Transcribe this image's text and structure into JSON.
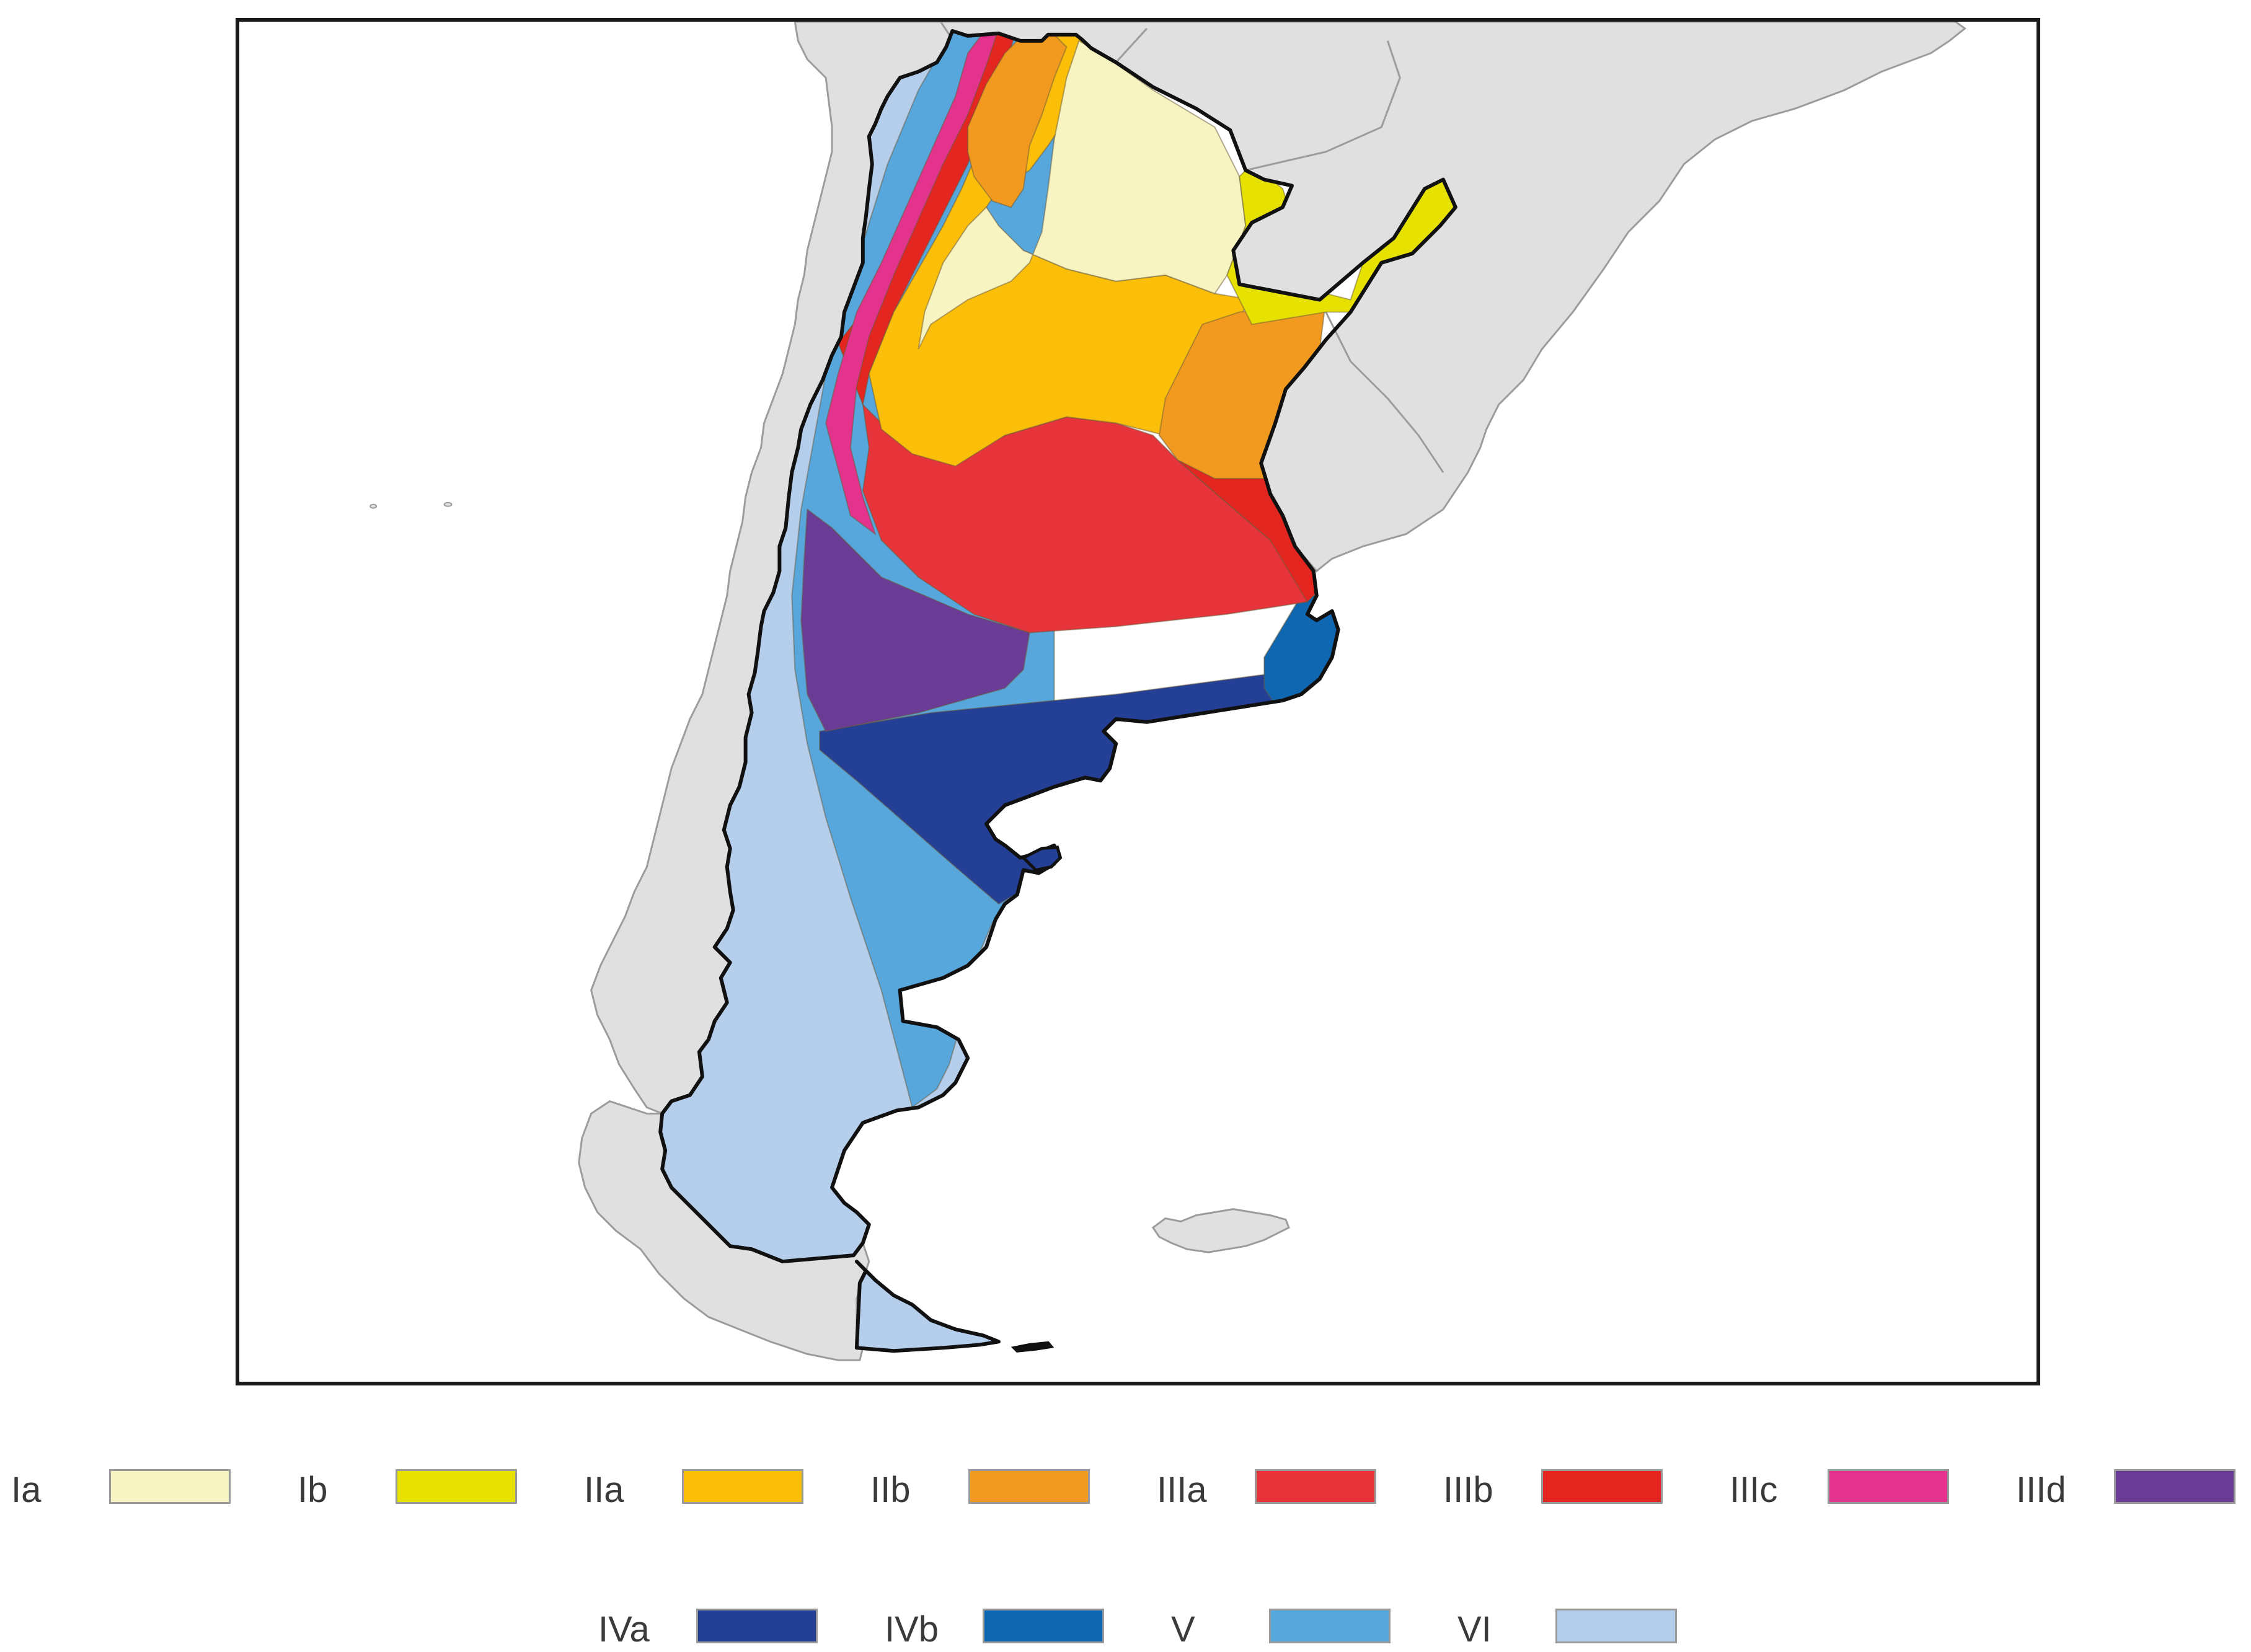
{
  "map": {
    "land_color": "#e0e0e0",
    "land_border_color": "#9c9c9c",
    "country_border_color": "#111111"
  },
  "legend": {
    "row1": [
      {
        "label": "Ia",
        "color": "#f7f4c2"
      },
      {
        "label": "Ib",
        "color": "#e6e100"
      },
      {
        "label": "IIa",
        "color": "#fbbf0a"
      },
      {
        "label": "IIb",
        "color": "#f29a1f"
      },
      {
        "label": "IIIa",
        "color": "#e6343a"
      },
      {
        "label": "IIIb",
        "color": "#e3261f"
      },
      {
        "label": "IIIc",
        "color": "#e3338d"
      },
      {
        "label": "IIId",
        "color": "#6b3c96"
      }
    ],
    "row2": [
      {
        "label": "IVa",
        "color": "#233f96"
      },
      {
        "label": "IVb",
        "color": "#0f67b2"
      },
      {
        "label": "V",
        "color": "#57a6dc"
      },
      {
        "label": "VI",
        "color": "#b5ceeb"
      }
    ]
  }
}
